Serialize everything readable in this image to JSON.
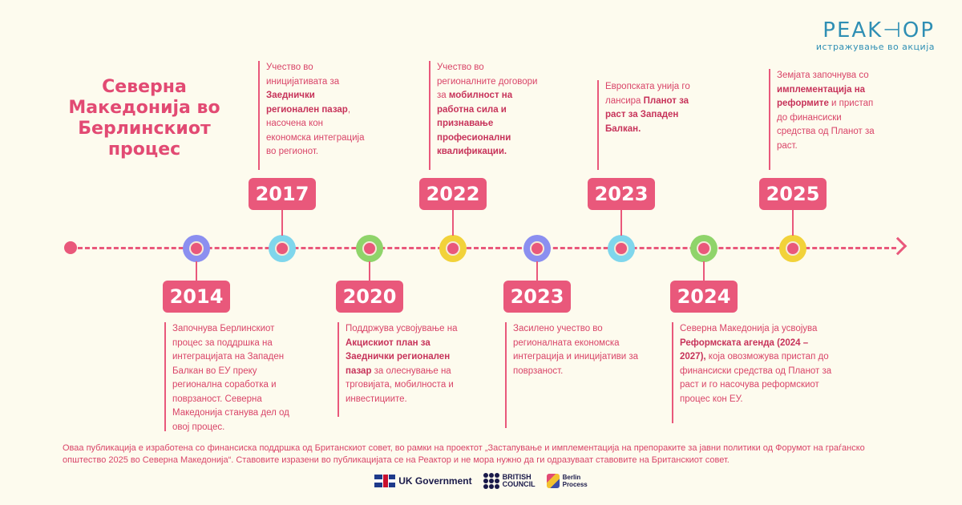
{
  "title": "Северна Македонија во Берлинскиот процес",
  "logo": {
    "name": "PEAK⊣OP",
    "tagline": "истражување во акција"
  },
  "colors": {
    "accent": "#e9587b",
    "background": "#fdfbee",
    "logo": "#2f8fb4"
  },
  "events_top": [
    {
      "year": "2017",
      "desc": [
        [
          "Учество во иницијативата за ",
          false
        ],
        [
          "Заеднички регионален пазар",
          true
        ],
        [
          ", насочена кон економска интеграција во регионот.",
          false
        ]
      ]
    },
    {
      "year": "2022",
      "desc": [
        [
          "Учество во регионалните договори за ",
          false
        ],
        [
          "мобилност на работна сила и признавање професионални квалификации.",
          true
        ]
      ]
    },
    {
      "year": "2023",
      "desc": [
        [
          "Европската унија го лансира ",
          false
        ],
        [
          "Планот за раст за Западен Балкан.",
          true
        ]
      ]
    },
    {
      "year": "2025",
      "desc": [
        [
          "Земјата започнува со ",
          false
        ],
        [
          "имплементација на реформите",
          true
        ],
        [
          " и пристап до финансиски средства од Планот за раст.",
          false
        ]
      ]
    }
  ],
  "events_bottom": [
    {
      "year": "2014",
      "desc": [
        [
          "Започнува Берлинскиот процес за поддршка на интеграцијата на Западен Балкан во ЕУ преку регионална соработка и поврзаност. Северна Македонија станува дел од овој процес.",
          false
        ]
      ]
    },
    {
      "year": "2020",
      "desc": [
        [
          "Поддржува усвојување на ",
          false
        ],
        [
          "Акцискиот план за Заеднички регионален пазар",
          true
        ],
        [
          " за олеснување на трговијата, мобилноста и инвестициите.",
          false
        ]
      ]
    },
    {
      "year": "2023",
      "desc": [
        [
          "Засилено учество во регионалната економска интеграција и иницијативи за поврзаност.",
          false
        ]
      ]
    },
    {
      "year": "2024",
      "desc": [
        [
          "Северна Македонија ја усвојува ",
          false
        ],
        [
          "Реформската агенда (2024 – 2027),",
          true
        ],
        [
          " која овозможува пристап до финансиски средства од Планот за раст и го насочува реформскиот процес кон ЕУ.",
          false
        ]
      ]
    }
  ],
  "nodes": [
    {
      "ring": "#8b8ff0"
    },
    {
      "ring": "#7fd6ec"
    },
    {
      "ring": "#8fd46a"
    },
    {
      "ring": "#f2d23a"
    },
    {
      "ring": "#8b8ff0"
    },
    {
      "ring": "#7fd6ec"
    },
    {
      "ring": "#8fd46a"
    },
    {
      "ring": "#f2d23a"
    }
  ],
  "footer": {
    "text": "Оваа публикација е изработена со финансиска поддршка од Британскиот совет, во рамки на проектот „Застапување и имплементација на препораките за јавни политики од Форумот на граѓанско општество 2025 во Северна Македонија“. Ставовите изразени во публикацијата се на Реактор и не мора нужно да ги одразуваат ставовите на Британскиот совет.",
    "uk_gov": "UK Government",
    "bc_line1": "BRITISH",
    "bc_line2": "COUNCIL",
    "bp_line1": "Berlin",
    "bp_line2": "Process"
  }
}
